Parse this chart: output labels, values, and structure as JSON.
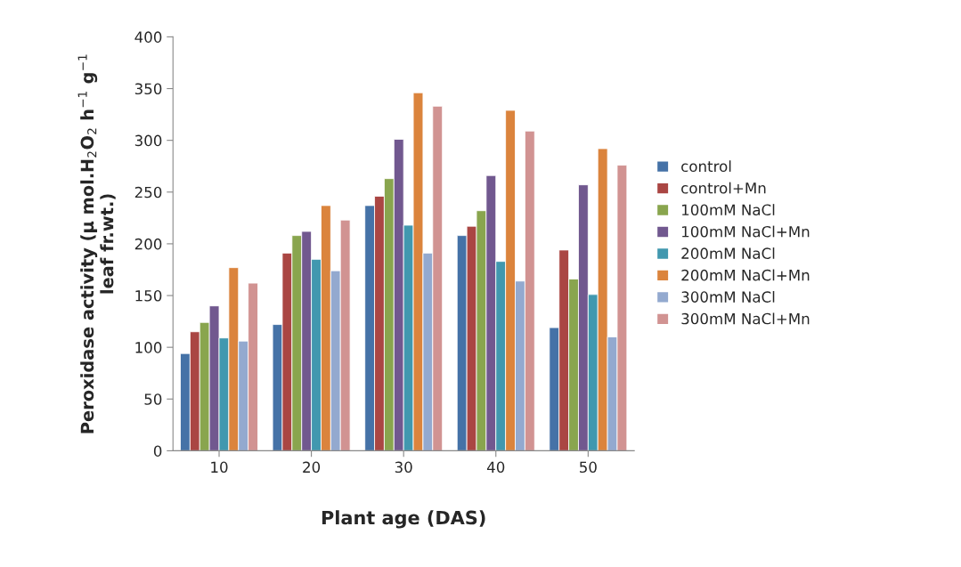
{
  "chart_data": {
    "type": "bar",
    "xlabel": "Plant age (DAS)",
    "ylabel": "Peroxidase activity (µ mol.H$_{2}$O$_{2}$ h$^{−1}$ g$^{−1}$\nleaf fr.wt.)",
    "categories": [
      "10",
      "20",
      "30",
      "40",
      "50"
    ],
    "series": [
      {
        "name": "control",
        "color": "#4572a7",
        "values": [
          94,
          122,
          237,
          208,
          119
        ]
      },
      {
        "name": "control+Mn",
        "color": "#aa4643",
        "values": [
          115,
          191,
          246,
          217,
          194
        ]
      },
      {
        "name": "100mM NaCl",
        "color": "#89a54e",
        "values": [
          124,
          208,
          263,
          232,
          166
        ]
      },
      {
        "name": "100mM NaCl+Mn",
        "color": "#71588f",
        "values": [
          140,
          212,
          301,
          266,
          257
        ]
      },
      {
        "name": "200mM NaCl",
        "color": "#4198af",
        "values": [
          109,
          185,
          218,
          183,
          151
        ]
      },
      {
        "name": "200mM NaCl+Mn",
        "color": "#db843d",
        "values": [
          177,
          237,
          346,
          329,
          292
        ]
      },
      {
        "name": "300mM NaCl",
        "color": "#93a9cf",
        "values": [
          106,
          174,
          191,
          164,
          110
        ]
      },
      {
        "name": "300mM NaCl+Mn",
        "color": "#d19392",
        "values": [
          162,
          223,
          333,
          309,
          276
        ]
      }
    ],
    "ylim": [
      0,
      400
    ],
    "yticks": [
      0,
      50,
      100,
      150,
      200,
      250,
      300,
      350,
      400
    ],
    "grid": false,
    "legend": "right"
  }
}
